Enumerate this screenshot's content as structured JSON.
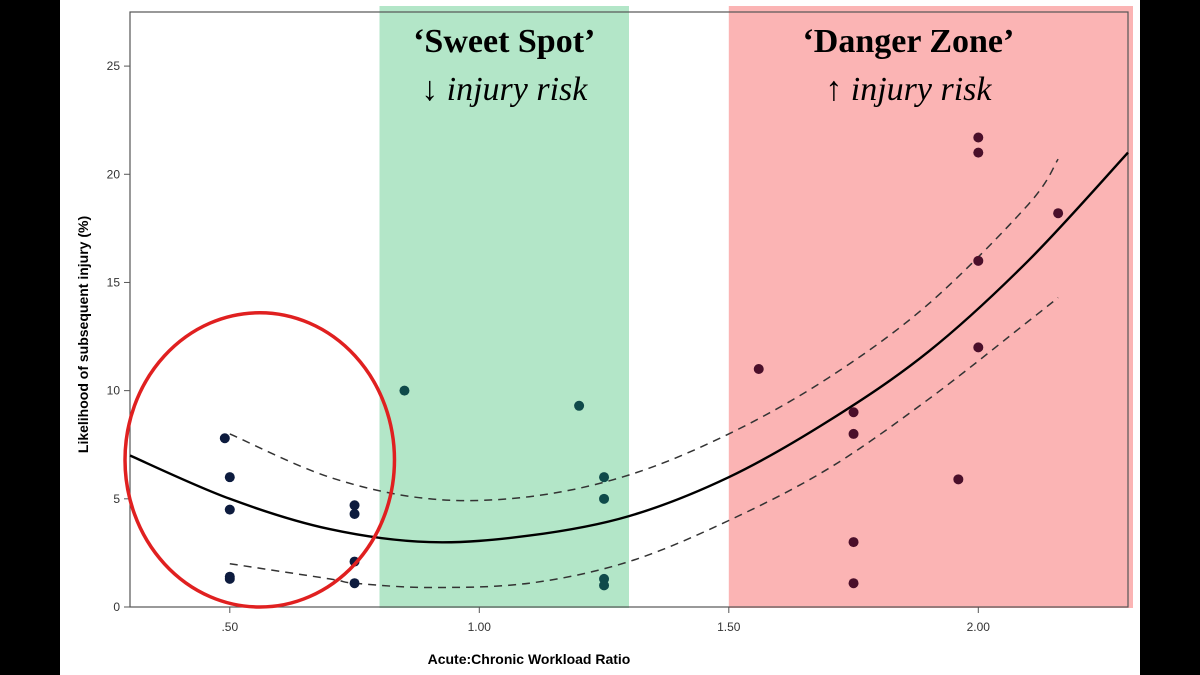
{
  "colors": {
    "sweet_spot_band": "#b3e6c8",
    "danger_zone_band": "#fbb4b4",
    "highlight_ellipse": "#e02020",
    "point_low": "#0d1b3e",
    "point_mid": "#0f4a4a",
    "point_high": "#4a0f2a",
    "fit_line": "#000000",
    "ci_line": "#333333"
  },
  "chart_data": {
    "type": "scatter",
    "xlabel": "Acute:Chronic Workload Ratio",
    "ylabel": "Likelihood of subsequent injury (%)",
    "xlim": [
      0.3,
      2.3
    ],
    "ylim": [
      0,
      27.5
    ],
    "x_ticks": [
      0.5,
      1.0,
      1.5,
      2.0
    ],
    "x_tick_labels": [
      ".50",
      "1.00",
      "1.50",
      "2.00"
    ],
    "y_ticks": [
      0,
      5,
      10,
      15,
      20,
      25
    ],
    "y_tick_labels": [
      "0",
      "5",
      "10",
      "15",
      "20",
      "25"
    ],
    "grid": false,
    "zones": [
      {
        "name": "sweet_spot",
        "x_start": 0.8,
        "x_end": 1.3,
        "title": "‘Sweet Spot’",
        "subtitle": "↓ injury risk"
      },
      {
        "name": "danger_zone",
        "x_start": 1.5,
        "x_end": 2.31,
        "title": "‘Danger Zone’",
        "subtitle": "↑ injury risk"
      }
    ],
    "highlight": {
      "shape": "ellipse",
      "x_center": 0.56,
      "y_center": 6.8,
      "x_radius": 0.27,
      "y_radius": 6.8
    },
    "points": [
      {
        "x": 0.49,
        "y": 7.8
      },
      {
        "x": 0.5,
        "y": 6.0
      },
      {
        "x": 0.5,
        "y": 4.5
      },
      {
        "x": 0.5,
        "y": 1.4
      },
      {
        "x": 0.5,
        "y": 1.3
      },
      {
        "x": 0.75,
        "y": 4.7
      },
      {
        "x": 0.75,
        "y": 4.3
      },
      {
        "x": 0.75,
        "y": 2.1
      },
      {
        "x": 0.75,
        "y": 1.1
      },
      {
        "x": 0.85,
        "y": 10.0
      },
      {
        "x": 1.2,
        "y": 9.3
      },
      {
        "x": 1.25,
        "y": 6.0
      },
      {
        "x": 1.25,
        "y": 5.0
      },
      {
        "x": 1.25,
        "y": 1.3
      },
      {
        "x": 1.25,
        "y": 1.0
      },
      {
        "x": 1.56,
        "y": 11.0
      },
      {
        "x": 1.75,
        "y": 9.0
      },
      {
        "x": 1.75,
        "y": 8.0
      },
      {
        "x": 1.75,
        "y": 3.0
      },
      {
        "x": 1.75,
        "y": 1.1
      },
      {
        "x": 1.96,
        "y": 5.9
      },
      {
        "x": 2.0,
        "y": 21.7
      },
      {
        "x": 2.0,
        "y": 21.0
      },
      {
        "x": 2.0,
        "y": 16.0
      },
      {
        "x": 2.0,
        "y": 12.0
      },
      {
        "x": 2.16,
        "y": 18.2
      }
    ],
    "fit_curve": {
      "type": "quadratic",
      "x": [
        0.3,
        0.5,
        0.7,
        0.9,
        1.1,
        1.3,
        1.5,
        1.7,
        1.9,
        2.1,
        2.3
      ],
      "y": [
        7.0,
        5.0,
        3.6,
        3.0,
        3.3,
        4.2,
        6.0,
        8.6,
        11.8,
        16.0,
        21.0
      ]
    },
    "ci_upper": {
      "x": [
        0.5,
        0.7,
        0.9,
        1.1,
        1.3,
        1.5,
        1.7,
        1.9,
        2.1,
        2.16
      ],
      "y": [
        8.0,
        6.0,
        5.0,
        5.1,
        6.1,
        8.0,
        10.6,
        14.0,
        18.6,
        20.7
      ]
    },
    "ci_lower": {
      "x": [
        0.5,
        0.7,
        0.75,
        0.9,
        1.1,
        1.3,
        1.5,
        1.7,
        1.9,
        2.1,
        2.16
      ],
      "y": [
        2.0,
        1.3,
        1.1,
        0.9,
        1.1,
        2.1,
        4.0,
        6.4,
        9.6,
        13.2,
        14.3
      ]
    }
  }
}
